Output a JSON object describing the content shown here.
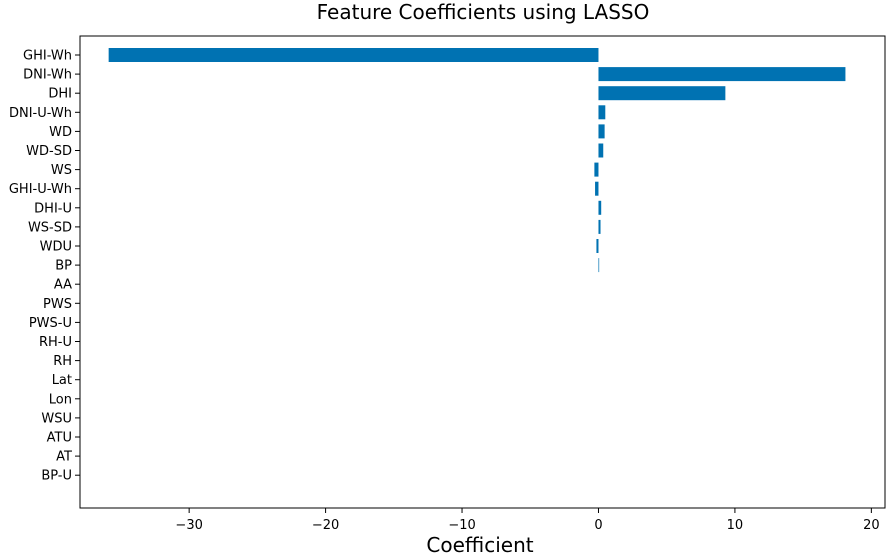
{
  "chart_data": {
    "type": "bar",
    "orientation": "horizontal",
    "title": "Feature Coefficients using LASSO",
    "xlabel": "Coefficient",
    "ylabel": "",
    "bar_color": "#0072b2",
    "grid": false,
    "xlim": [
      -38.0,
      21.0
    ],
    "xticks": [
      -30,
      -20,
      -10,
      0,
      10,
      20
    ],
    "xtick_labels": [
      "−30",
      "−20",
      "−10",
      "0",
      "10",
      "20"
    ],
    "categories": [
      "GHI-Wh",
      "DNI-Wh",
      "DHI",
      "DNI-U-Wh",
      "WD",
      "WD-SD",
      "WS",
      "GHI-U-Wh",
      "DHI-U",
      "WS-SD",
      "WDU",
      "BP",
      "AA",
      "PWS",
      "PWS-U",
      "RH-U",
      "RH",
      "Lat",
      "Lon",
      "WSU",
      "ATU",
      "AT",
      "BP-U"
    ],
    "values": [
      -35.9,
      18.1,
      9.3,
      0.5,
      0.45,
      0.35,
      -0.3,
      -0.25,
      0.2,
      0.15,
      -0.15,
      0.05,
      0,
      0,
      0,
      0,
      0,
      0,
      0,
      0,
      0,
      0,
      0
    ]
  }
}
